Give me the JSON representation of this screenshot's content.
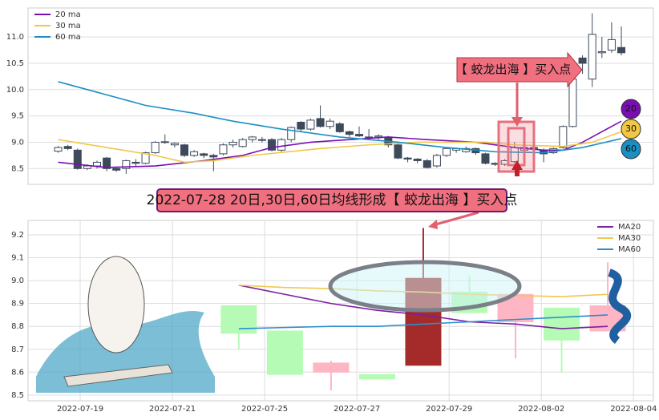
{
  "chart_data": [
    {
      "type": "candlestick",
      "open": [
        8.83,
        8.92,
        8.85,
        8.5,
        8.55,
        8.7,
        8.5,
        8.5,
        8.62,
        8.6,
        8.8,
        9.0,
        8.95,
        8.95,
        8.75,
        8.78,
        8.75,
        8.78,
        8.95,
        8.92,
        9.05,
        9.05,
        9.05,
        8.85,
        9.05,
        9.38,
        9.25,
        9.45,
        9.3,
        9.35,
        9.2,
        9.15,
        9.1,
        9.1,
        9.1,
        8.95,
        8.7,
        8.68,
        8.65,
        8.55,
        8.75,
        8.85,
        8.82,
        8.88,
        8.78,
        8.6,
        8.58,
        8.63,
        8.85,
        8.9,
        8.85,
        8.8,
        8.9,
        9.3,
        10.6,
        10.2,
        10.7,
        10.75,
        10.8
      ],
      "close": [
        8.9,
        8.88,
        8.5,
        8.55,
        8.62,
        8.5,
        8.47,
        8.65,
        8.6,
        8.8,
        9.0,
        9.01,
        8.98,
        8.75,
        8.82,
        8.75,
        8.72,
        8.95,
        9.0,
        9.05,
        9.1,
        9.05,
        8.85,
        9.05,
        9.28,
        9.25,
        9.42,
        9.3,
        9.4,
        9.2,
        9.15,
        9.12,
        9.1,
        9.12,
        8.95,
        8.7,
        8.68,
        8.65,
        8.52,
        8.75,
        8.88,
        8.88,
        8.88,
        8.8,
        8.6,
        8.58,
        8.65,
        8.9,
        8.9,
        8.9,
        8.78,
        8.88,
        9.3,
        10.2,
        10.5,
        11.05,
        10.72,
        10.95,
        10.7
      ],
      "high": [
        8.93,
        8.95,
        8.88,
        8.58,
        8.65,
        8.72,
        8.52,
        8.67,
        8.68,
        8.82,
        9.02,
        9.15,
        9.0,
        8.97,
        8.85,
        8.8,
        8.78,
        8.98,
        9.05,
        9.08,
        9.12,
        9.1,
        9.08,
        9.08,
        9.3,
        9.4,
        9.45,
        9.7,
        9.45,
        9.38,
        9.22,
        9.3,
        9.25,
        9.15,
        9.12,
        8.97,
        8.72,
        8.7,
        8.68,
        8.78,
        8.9,
        8.9,
        8.92,
        8.9,
        8.8,
        8.62,
        8.68,
        9.0,
        8.92,
        8.95,
        8.88,
        8.9,
        9.32,
        10.5,
        10.65,
        11.45,
        11.0,
        11.28,
        11.2
      ],
      "low": [
        8.8,
        8.85,
        8.48,
        8.47,
        8.5,
        8.45,
        8.44,
        8.4,
        8.55,
        8.58,
        8.78,
        8.97,
        8.9,
        8.72,
        8.72,
        8.7,
        8.45,
        8.75,
        8.9,
        8.9,
        9.0,
        9.0,
        8.83,
        8.82,
        9.0,
        9.2,
        9.22,
        9.28,
        9.25,
        9.18,
        9.1,
        9.1,
        9.05,
        9.05,
        8.9,
        8.68,
        8.62,
        8.6,
        8.5,
        8.52,
        8.72,
        8.8,
        8.8,
        8.76,
        8.58,
        8.55,
        8.55,
        8.6,
        8.82,
        8.85,
        8.62,
        8.78,
        8.88,
        9.28,
        10.3,
        10.05,
        10.6,
        10.7,
        10.65
      ],
      "up_color": "#ffffff",
      "down_color": "#3d4a5c",
      "edge_color": "#3d4a5c",
      "series": [
        {
          "name": "20 ma",
          "color": "#7a0fb0",
          "x": [
            0,
            5,
            10,
            15,
            19,
            22,
            26,
            30,
            34,
            38,
            43,
            47,
            50,
            52,
            54,
            56,
            58
          ],
          "values": [
            8.62,
            8.52,
            8.55,
            8.65,
            8.75,
            8.9,
            9.0,
            9.05,
            9.1,
            9.05,
            9.0,
            8.9,
            8.85,
            8.85,
            9.0,
            9.2,
            9.4
          ]
        },
        {
          "name": "30 ma",
          "color": "#f2c744",
          "x": [
            0,
            5,
            10,
            13,
            16,
            20,
            27,
            32,
            37,
            44,
            47,
            52,
            55,
            58
          ],
          "values": [
            9.05,
            8.9,
            8.75,
            8.62,
            8.65,
            8.75,
            8.88,
            8.95,
            9.0,
            9.0,
            8.95,
            8.92,
            9.0,
            9.2
          ]
        },
        {
          "name": "60 ma",
          "color": "#1a8fc4",
          "x": [
            0,
            4,
            9,
            14,
            18,
            23,
            29,
            35,
            40,
            45,
            50,
            54,
            58
          ],
          "values": [
            10.15,
            9.95,
            9.7,
            9.55,
            9.4,
            9.25,
            9.1,
            9.0,
            8.9,
            8.82,
            8.8,
            8.9,
            9.07
          ]
        }
      ],
      "xlim": [
        -3.1,
        61.3
      ],
      "ylim": [
        8.2,
        11.55
      ],
      "yticks": [
        8.5,
        {
          "value": 9,
          "label": "9.0"
        },
        9.5,
        {
          "value": 10,
          "label": "10.0"
        },
        10.5,
        {
          "value": 11,
          "label": "11.0"
        }
      ],
      "grid": true,
      "legend_position": "upper left",
      "annotation": "【 蛟龙出海 】买入点",
      "badges": [
        "20",
        "30",
        "60"
      ]
    },
    {
      "type": "candlestick",
      "title": "2022-07-28 20日,30日,60日均线形成【 蛟龙出海 】买入点",
      "x": [
        0,
        1,
        2,
        3,
        4,
        5,
        6,
        7,
        8
      ],
      "open": [
        8.89,
        8.78,
        8.64,
        8.59,
        9.01,
        8.95,
        8.82,
        8.88,
        8.78
      ],
      "close": [
        8.77,
        8.59,
        8.6,
        8.57,
        8.63,
        8.86,
        8.94,
        8.74,
        8.89
      ],
      "high": [
        8.89,
        8.78,
        8.65,
        8.59,
        9.23,
        9.02,
        8.94,
        8.88,
        9.08
      ],
      "low": [
        8.7,
        8.59,
        8.52,
        8.57,
        8.63,
        8.86,
        8.66,
        8.6,
        8.78
      ],
      "colors": [
        "#b5fbb5",
        "#b5fbb5",
        "#ffb6c4",
        "#b5fbb5",
        "#a52a2a",
        "#b5fbb5",
        "#ffb6c4",
        "#b5fbb5",
        "#ffb6c4"
      ],
      "series": [
        {
          "name": "MA20",
          "color": "#7b1fa2",
          "values": [
            8.98,
            8.94,
            8.9,
            8.87,
            8.85,
            8.82,
            8.81,
            8.79,
            8.8
          ]
        },
        {
          "name": "MA30",
          "color": "#f0c850",
          "values": [
            8.98,
            8.97,
            8.965,
            8.955,
            8.95,
            8.94,
            8.935,
            8.93,
            8.94
          ]
        },
        {
          "name": "MA60",
          "color": "#2a8fd0",
          "values": [
            8.79,
            8.795,
            8.8,
            8.8,
            8.81,
            8.82,
            8.83,
            8.84,
            8.85
          ]
        }
      ],
      "xlim": [
        -4.57,
        8.99
      ],
      "ylim": [
        8.475,
        9.263
      ],
      "xticks": [
        {
          "value": -3.44,
          "label": "2022-07-19"
        },
        {
          "value": -1.44,
          "label": "2022-07-21"
        },
        {
          "value": 0.56,
          "label": "2022-07-25"
        },
        {
          "value": 2.56,
          "label": "2022-07-27"
        },
        {
          "value": 4.56,
          "label": "2022-07-29"
        },
        {
          "value": 6.56,
          "label": "2022-08-02"
        },
        {
          "value": 8.56,
          "label": "2022-08-04"
        }
      ],
      "yticks": [
        8.5,
        8.6,
        8.7,
        8.8,
        8.9,
        {
          "value": 9,
          "label": "9.0"
        },
        9.1,
        9.2
      ],
      "grid": true,
      "legend_position": "upper right"
    }
  ]
}
